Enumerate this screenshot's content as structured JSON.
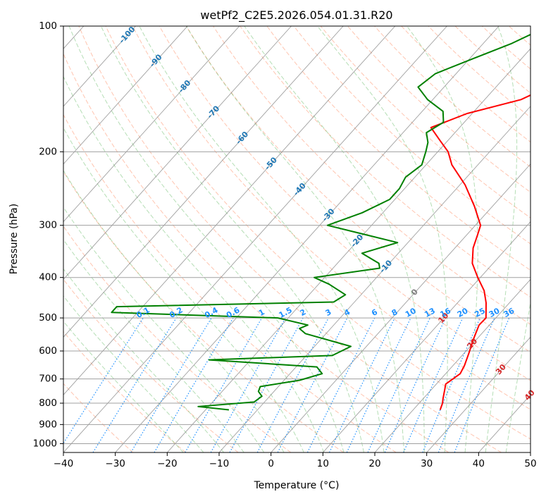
{
  "chart_data": {
    "type": "line",
    "subtype": "skew-t-log-p",
    "title": "wetPf2_C2E5.2026.054.01.31.R20",
    "xlabel": "Temperature (°C)",
    "ylabel": "Pressure (hPa)",
    "xlim": [
      -40,
      50
    ],
    "ylim": [
      1050,
      100
    ],
    "y_scale": "log",
    "x_ticks": [
      -40,
      -30,
      -20,
      -10,
      0,
      10,
      20,
      30,
      40,
      50
    ],
    "y_ticks": [
      100,
      200,
      300,
      400,
      500,
      600,
      700,
      800,
      900,
      1000
    ],
    "grid": true,
    "series": [
      {
        "color": "#ff0000",
        "points": [
          [
            25.2,
            830
          ],
          [
            24.5,
            800
          ],
          [
            23.8,
            780
          ],
          [
            22.5,
            740
          ],
          [
            21.8,
            720
          ],
          [
            22.8,
            680
          ],
          [
            22.2,
            650
          ],
          [
            21.0,
            610
          ],
          [
            19.3,
            560
          ],
          [
            18.0,
            520
          ],
          [
            18.1,
            500
          ],
          [
            15.5,
            460
          ],
          [
            13.0,
            430
          ],
          [
            9.5,
            400
          ],
          [
            6.0,
            370
          ],
          [
            3.5,
            340
          ],
          [
            2.0,
            315
          ],
          [
            1.0,
            300
          ],
          [
            -3.5,
            270
          ],
          [
            -9.0,
            240
          ],
          [
            -15.0,
            215
          ],
          [
            -18.0,
            200
          ],
          [
            -21.5,
            188
          ],
          [
            -25.5,
            175
          ],
          [
            -21.0,
            162
          ],
          [
            -13.0,
            150
          ],
          [
            -10.0,
            140
          ],
          [
            -9.0,
            130
          ],
          [
            -8.0,
            122
          ],
          [
            -9.0,
            112
          ],
          [
            -9.5,
            100
          ]
        ]
      },
      {
        "color": "#008000",
        "points": [
          [
            -15.5,
            830
          ],
          [
            -22.0,
            815
          ],
          [
            -12.0,
            795
          ],
          [
            -11.5,
            770
          ],
          [
            -13.0,
            750
          ],
          [
            -13.5,
            730
          ],
          [
            -7.0,
            705
          ],
          [
            -3.8,
            680
          ],
          [
            -6.0,
            655
          ],
          [
            -28.0,
            630
          ],
          [
            -5.0,
            615
          ],
          [
            -3.0,
            585
          ],
          [
            -14.0,
            545
          ],
          [
            -16.0,
            530
          ],
          [
            -15.0,
            520
          ],
          [
            -22.0,
            500
          ],
          [
            -55.0,
            485
          ],
          [
            -55.0,
            470
          ],
          [
            -14.0,
            458
          ],
          [
            -13.0,
            440
          ],
          [
            -18.0,
            415
          ],
          [
            -22.0,
            400
          ],
          [
            -11.0,
            380
          ],
          [
            -12.0,
            370
          ],
          [
            -17.0,
            350
          ],
          [
            -12.0,
            330
          ],
          [
            -28.5,
            300
          ],
          [
            -24.0,
            280
          ],
          [
            -21.0,
            260
          ],
          [
            -21.0,
            245
          ],
          [
            -21.8,
            230
          ],
          [
            -20.8,
            215
          ],
          [
            -22.3,
            200
          ],
          [
            -23.5,
            190
          ],
          [
            -25.5,
            180
          ],
          [
            -24.0,
            170
          ],
          [
            -26.0,
            160
          ],
          [
            -31.0,
            150
          ],
          [
            -35.0,
            140
          ],
          [
            -34.0,
            130
          ],
          [
            -29.5,
            120
          ],
          [
            -24.5,
            110
          ],
          [
            -20.5,
            100
          ]
        ]
      }
    ],
    "isotherm_labels": [
      "-100",
      "-90",
      "-80",
      "-70",
      "-60",
      "-50",
      "-40",
      "-30",
      "-20",
      "-10",
      "0",
      "10",
      "20",
      "30",
      "40"
    ],
    "mixing_ratio_labels": [
      "0.1",
      "0.2",
      "0.4",
      "0.6",
      "1",
      "1.5",
      "2",
      "3",
      "4",
      "6",
      "8",
      "10",
      "13",
      "16",
      "20",
      "25",
      "30",
      "36"
    ],
    "colors": {
      "temperature": "#ff0000",
      "dewpoint": "#008000",
      "isotherm_neg": "#1f77b4",
      "isotherm_pos": "#d62728",
      "isotherm_zero": "#7f7f7f",
      "mixing_ratio": "#1e90ff",
      "dry_adiabat": "#ff7f50",
      "moist_adiabat": "#2ca02c",
      "skew_grid": "#808080",
      "pressure_grid": "#a0a0a0"
    }
  }
}
